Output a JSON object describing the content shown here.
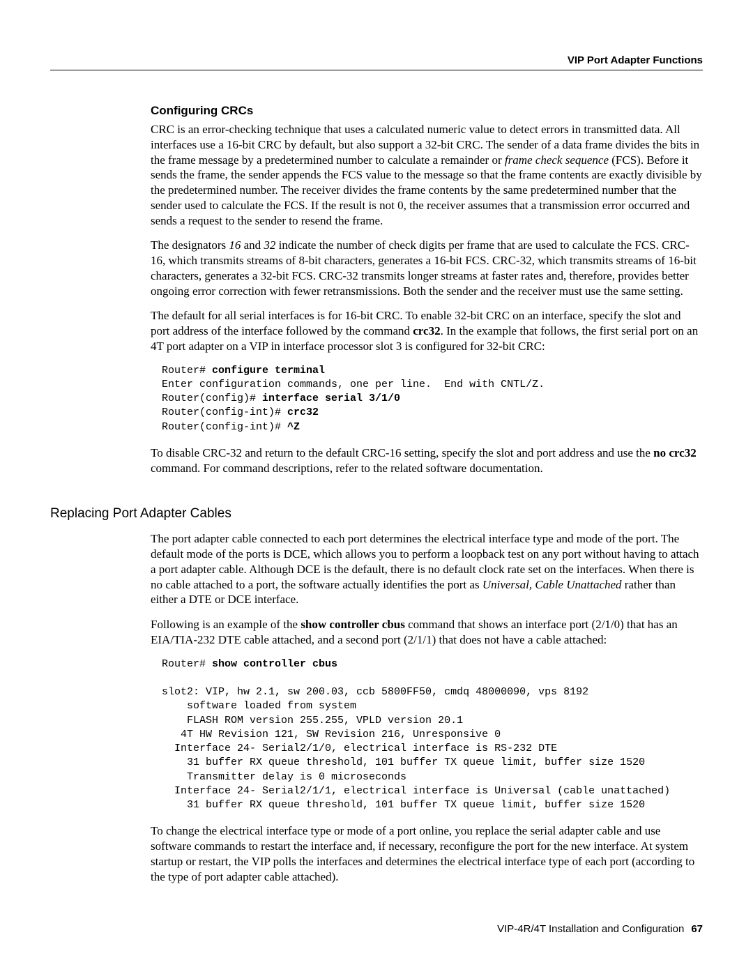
{
  "header": {
    "right": "VIP Port Adapter Functions"
  },
  "section1": {
    "title": "Configuring CRCs",
    "p1a": "CRC is an error-checking technique that uses a calculated numeric value to detect errors in transmitted data. All interfaces use a 16-bit CRC by default, but also support a 32-bit CRC. The sender of a data frame divides the bits in the frame message by a predetermined number to calculate a remainder or ",
    "p1i": "frame check sequence",
    "p1b": " (FCS). Before it sends the frame, the sender appends the FCS value to the message so that the frame contents are exactly divisible by the predetermined number. The receiver divides the frame contents by the same predetermined number that the sender used to calculate the FCS. If the result is not 0, the receiver assumes that a transmission error occurred and sends a request to the sender to resend the frame.",
    "p2a": "The designators ",
    "p2i1": "16",
    "p2b": " and ",
    "p2i2": "32",
    "p2c": " indicate the number of check digits per frame that are used to calculate the FCS. CRC-16, which transmits streams of 8-bit characters, generates a 16-bit FCS. CRC-32, which transmits streams of 16-bit characters, generates a 32-bit FCS. CRC-32 transmits longer streams at faster rates and, therefore, provides better ongoing error correction with fewer retransmissions. Both the sender and the receiver must use the same setting.",
    "p3a": "The default for all serial interfaces is for 16-bit CRC. To enable 32-bit CRC on an interface, specify the slot and port address of the interface followed by the command ",
    "p3b1": "crc32",
    "p3b": ". In the example that follows, the first serial port on an 4T port adapter on a VIP in interface processor slot 3 is configured for 32-bit CRC:",
    "code": {
      "l1p": "Router# ",
      "l1b": "configure terminal",
      "l2": "Enter configuration commands, one per line.  End with CNTL/Z.",
      "l3p": "Router(config)# ",
      "l3b": "interface serial 3/1/0",
      "l4p": "Router(config-int)# ",
      "l4b": "crc32",
      "l5p": "Router(config-int)# ",
      "l5b": "^Z"
    },
    "p4a": "To disable CRC-32 and return to the default CRC-16 setting, specify the slot and port address and use the ",
    "p4b1": "no crc32",
    "p4b": " command. For command descriptions, refer to the related software documentation."
  },
  "section2": {
    "title": "Replacing Port Adapter Cables",
    "p1a": "The port adapter cable connected to each port determines the electrical interface type and mode of the port. The default mode of the ports is DCE, which allows you to perform a loopback test on any port without having to attach a port adapter cable. Although DCE is the default, there is no default clock rate set on the interfaces. When there is no cable attached to a port, the software actually identifies the port as ",
    "p1i": "Universal, Cable Unattached",
    "p1b": " rather than either a DTE or DCE interface.",
    "p2a": "Following is an example of the ",
    "p2b1": "show controller cbus",
    "p2b": " command that shows an interface port (2/1/0) that has an EIA/TIA-232 DTE cable attached, and a second port (2/1/1) that does not have a cable attached:",
    "code": {
      "l1p": "Router# ",
      "l1b": "show controller cbus",
      "rest": "slot2: VIP, hw 2.1, sw 200.03, ccb 5800FF50, cmdq 48000090, vps 8192\n    software loaded from system\n    FLASH ROM version 255.255, VPLD version 20.1\n   4T HW Revision 121, SW Revision 216, Unresponsive 0\n  Interface 24- Serial2/1/0, electrical interface is RS-232 DTE\n    31 buffer RX queue threshold, 101 buffer TX queue limit, buffer size 1520\n    Transmitter delay is 0 microseconds\n  Interface 24- Serial2/1/1, electrical interface is Universal (cable unattached)\n    31 buffer RX queue threshold, 101 buffer TX queue limit, buffer size 1520"
    },
    "p3": "To change the electrical interface type or mode of a port online, you replace the serial adapter cable and use software commands to restart the interface and, if necessary, reconfigure the port for the new interface. At system startup or restart, the VIP polls the interfaces and determines the electrical interface type of each port (according to the type of port adapter cable attached)."
  },
  "footer": {
    "title": "VIP-4R/4T Installation and Configuration",
    "page": "67"
  }
}
